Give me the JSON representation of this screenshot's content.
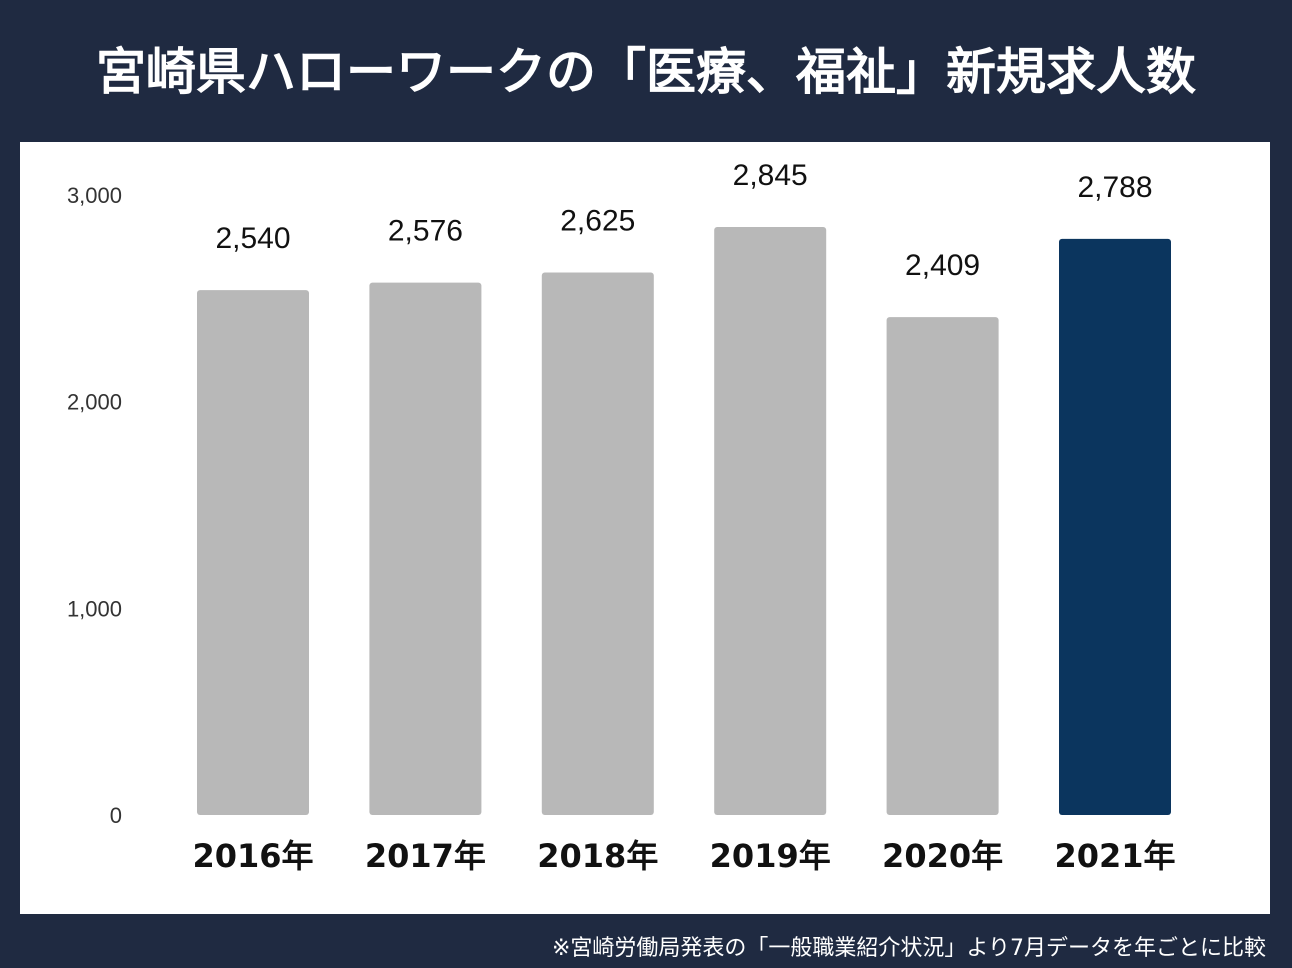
{
  "title": "宮崎県ハローワークの「医療、福祉」新規求人数",
  "footnote": "※宮崎労働局発表の「一般職業紹介状況」より7月データを年ごとに比較",
  "colors": {
    "background": "#1f2a41",
    "bar_default": "#b8b8b8",
    "bar_highlight": "#0b355e"
  },
  "chart_data": {
    "type": "bar",
    "title": "宮崎県ハローワークの「医療、福祉」新規求人数",
    "categories": [
      "2016年",
      "2017年",
      "2018年",
      "2019年",
      "2020年",
      "2021年"
    ],
    "values": [
      2540,
      2576,
      2625,
      2845,
      2409,
      2788
    ],
    "value_labels": [
      "2,540",
      "2,576",
      "2,625",
      "2,845",
      "2,409",
      "2,788"
    ],
    "highlight_index": 5,
    "ylim": [
      0,
      3000
    ],
    "yticks": [
      0,
      1000,
      2000,
      3000
    ],
    "ytick_labels": [
      "0",
      "1,000",
      "2,000",
      "3,000"
    ],
    "grid": false,
    "xlabel": "",
    "ylabel": ""
  }
}
